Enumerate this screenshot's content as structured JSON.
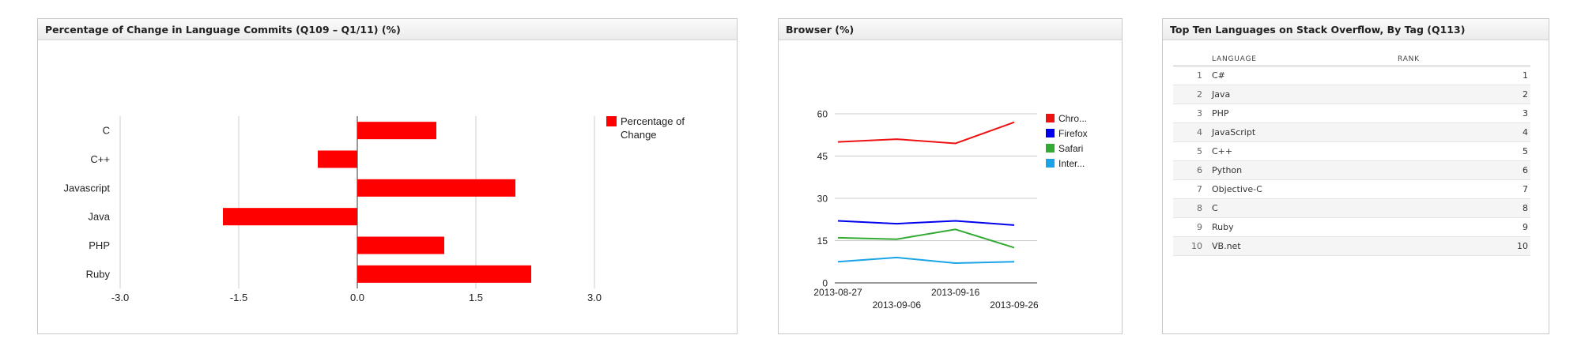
{
  "commits_widget": {
    "title": "Percentage of Change in Language Commits (Q109 – Q1/11) (%)"
  },
  "browser_widget": {
    "title": "Browser (%)"
  },
  "languages_widget": {
    "title": "Top Ten Languages on Stack Overflow, By Tag (Q113)",
    "columns": {
      "language": "LANGUAGE",
      "rank": "RANK"
    },
    "rows": [
      {
        "index": "1",
        "language": "C#",
        "rank": "1"
      },
      {
        "index": "2",
        "language": "Java",
        "rank": "2"
      },
      {
        "index": "3",
        "language": "PHP",
        "rank": "3"
      },
      {
        "index": "4",
        "language": "JavaScript",
        "rank": "4"
      },
      {
        "index": "5",
        "language": "C++",
        "rank": "5"
      },
      {
        "index": "6",
        "language": "Python",
        "rank": "6"
      },
      {
        "index": "7",
        "language": "Objective-C",
        "rank": "7"
      },
      {
        "index": "8",
        "language": "C",
        "rank": "8"
      },
      {
        "index": "9",
        "language": "Ruby",
        "rank": "9"
      },
      {
        "index": "10",
        "language": "VB.net",
        "rank": "10"
      }
    ]
  },
  "chart_data": [
    {
      "type": "bar",
      "orientation": "horizontal",
      "categories": [
        "C",
        "C++",
        "Javascript",
        "Java",
        "PHP",
        "Ruby"
      ],
      "series": [
        {
          "name": "Percentage of Change",
          "values": [
            1.0,
            -0.5,
            2.0,
            -1.7,
            1.1,
            2.2
          ],
          "color": "#ff0000"
        }
      ],
      "legend_lines": [
        "Percentage of",
        "Change"
      ],
      "xlim": [
        -3.0,
        3.0
      ],
      "x_ticks": [
        "-3.0",
        "-1.5",
        "0.0",
        "1.5",
        "3.0"
      ],
      "x_tick_values": [
        -3.0,
        -1.5,
        0.0,
        1.5,
        3.0
      ],
      "grid": true,
      "legend_position": "right"
    },
    {
      "type": "line",
      "x": [
        "2013-08-27",
        "2013-09-06",
        "2013-09-16",
        "2013-09-26"
      ],
      "series": [
        {
          "name": "Chro...",
          "values": [
            50,
            51,
            49.5,
            57
          ],
          "color": "#ee1111"
        },
        {
          "name": "Firefox",
          "values": [
            22,
            21,
            22,
            20.5
          ],
          "color": "#0000ee"
        },
        {
          "name": "Safari",
          "values": [
            16,
            15.5,
            19,
            12.5
          ],
          "color": "#33aa33"
        },
        {
          "name": "Inter...",
          "values": [
            7.5,
            9,
            7,
            7.5
          ],
          "color": "#1aa3e6"
        }
      ],
      "ylim": [
        0,
        60
      ],
      "y_ticks": [
        "0",
        "15",
        "30",
        "45",
        "60"
      ],
      "y_tick_values": [
        0,
        15,
        30,
        45,
        60
      ],
      "grid": true,
      "legend_position": "right"
    }
  ]
}
